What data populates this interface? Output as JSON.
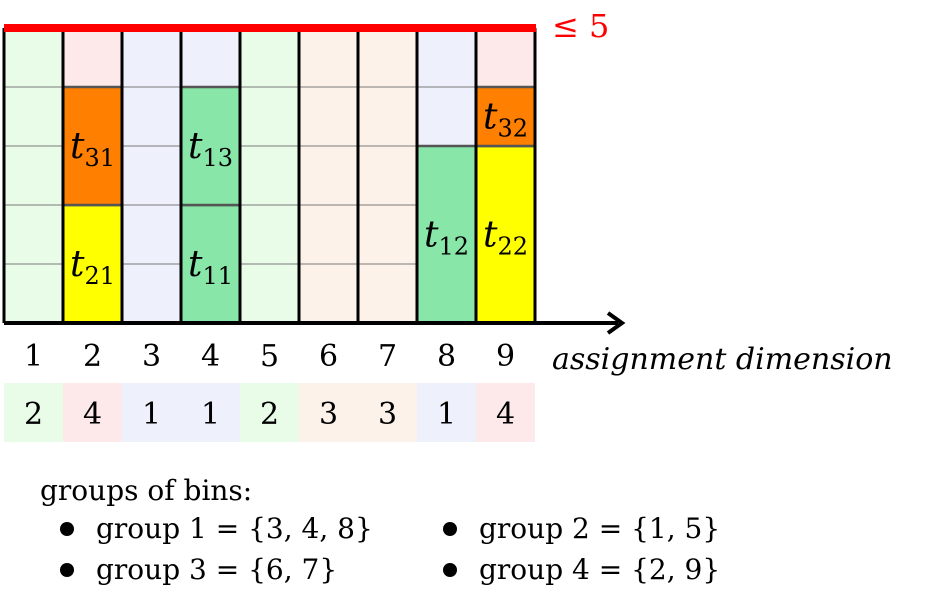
{
  "capacity_label": "≤ 5",
  "axis_label": "assignment dimension",
  "bin_numbers": [
    "1",
    "2",
    "3",
    "4",
    "5",
    "6",
    "7",
    "8",
    "9"
  ],
  "bin_groups": [
    "2",
    "4",
    "1",
    "1",
    "2",
    "3",
    "3",
    "1",
    "4"
  ],
  "group_colors": {
    "1": "#eef0fc",
    "2": "#e8fce8",
    "3": "#fdf2ea",
    "4": "#fde8ea"
  },
  "capacity": 5,
  "tasks": [
    {
      "label": "t",
      "sub": "21",
      "bin": 2,
      "y0": 0,
      "height": 2,
      "color": "#ffff00"
    },
    {
      "label": "t",
      "sub": "31",
      "bin": 2,
      "y0": 2,
      "height": 2,
      "color": "#ff7f00"
    },
    {
      "label": "t",
      "sub": "11",
      "bin": 4,
      "y0": 0,
      "height": 2,
      "color": "#88e6a8"
    },
    {
      "label": "t",
      "sub": "13",
      "bin": 4,
      "y0": 2,
      "height": 2,
      "color": "#88e6a8"
    },
    {
      "label": "t",
      "sub": "12",
      "bin": 8,
      "y0": 0,
      "height": 3,
      "color": "#88e6a8"
    },
    {
      "label": "t",
      "sub": "22",
      "bin": 9,
      "y0": 0,
      "height": 3,
      "color": "#ffff00"
    },
    {
      "label": "t",
      "sub": "32",
      "bin": 9,
      "y0": 3,
      "height": 1,
      "color": "#ff7f00"
    }
  ],
  "legend": {
    "title": "groups of bins:",
    "items": [
      "group 1 = {3, 4, 8}",
      "group 2 = {1, 5}",
      "group 3 = {6, 7}",
      "group 4 = {2, 9}"
    ]
  }
}
